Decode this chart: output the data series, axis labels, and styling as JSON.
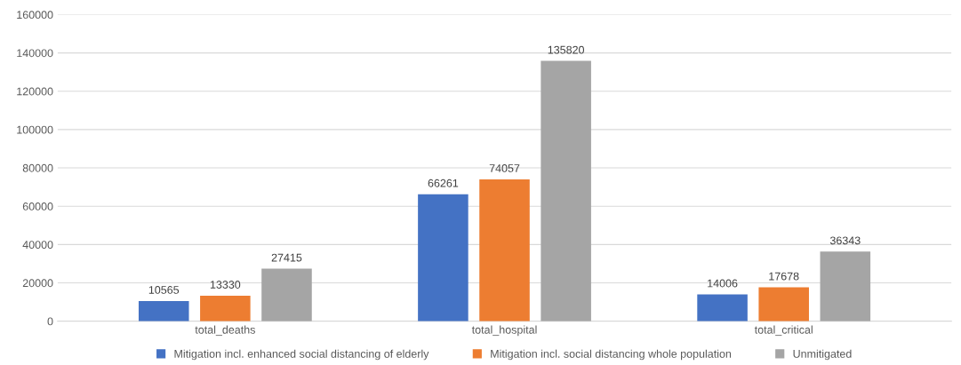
{
  "chart_data": {
    "type": "bar",
    "categories": [
      "total_deaths",
      "total_hospital",
      "total_critical"
    ],
    "series": [
      {
        "name": "Mitigation incl. enhanced social distancing of elderly",
        "color": "#4472c4",
        "values": [
          10565,
          66261,
          14006
        ]
      },
      {
        "name": "Mitigation incl. social distancing whole population",
        "color": "#ed7d31",
        "values": [
          13330,
          74057,
          17678
        ]
      },
      {
        "name": "Unmitigated",
        "color": "#a5a5a5",
        "values": [
          27415,
          135820,
          36343
        ]
      }
    ],
    "ylim": [
      0,
      160000
    ],
    "yticks": [
      0,
      20000,
      40000,
      60000,
      80000,
      100000,
      120000,
      140000,
      160000
    ],
    "grid": "y",
    "legend": "bottom",
    "data_labels": true
  }
}
